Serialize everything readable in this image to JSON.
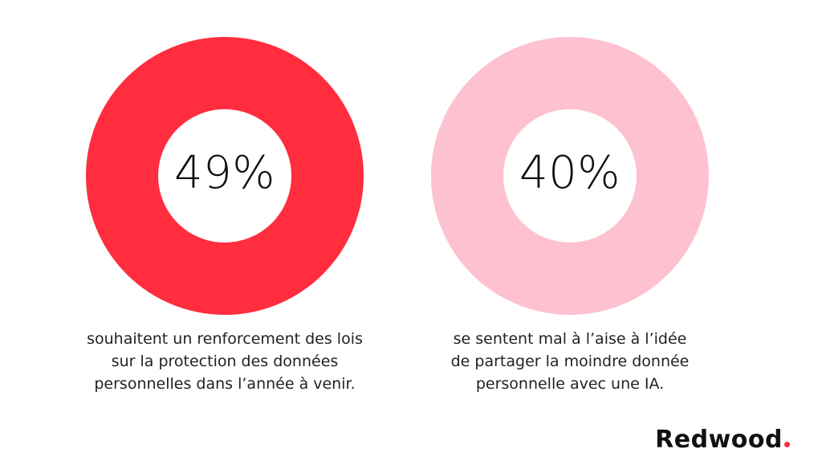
{
  "chart_data": [
    {
      "type": "pie",
      "value_label": "49%",
      "value": 49,
      "color": "#ff2d3d",
      "caption": [
        "souhaitent un renforcement des lois",
        "sur la protection des données",
        "personnelles dans l’année à venir."
      ]
    },
    {
      "type": "pie",
      "value_label": "40%",
      "value": 40,
      "color": "#fec1cf",
      "caption": [
        "se sentent mal à l’aise à l’idée",
        "de partager la moindre donnée",
        "personnelle avec une IA."
      ]
    }
  ],
  "logo": {
    "text": "Redwood"
  }
}
